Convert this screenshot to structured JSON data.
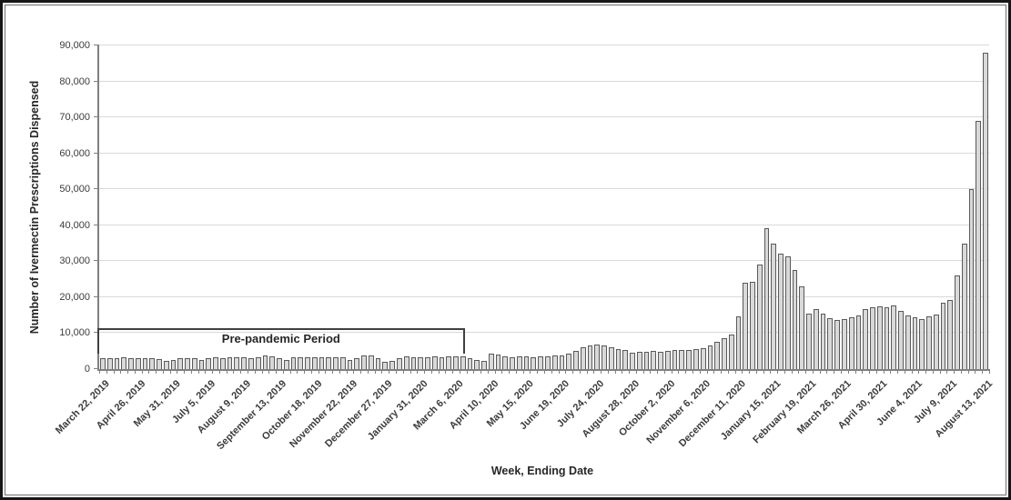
{
  "chart_data": {
    "type": "bar",
    "title": "",
    "xlabel": "Week, Ending Date",
    "ylabel": "Number of Ivermectin Prescriptions Dispensed",
    "ylim": [
      0,
      90000
    ],
    "ytick_interval": 10000,
    "ytick_labels": [
      "0",
      "10,000",
      "20,000",
      "30,000",
      "40,000",
      "50,000",
      "60,000",
      "70,000",
      "80,000",
      "90,000"
    ],
    "grid": "horizontal",
    "legend": "none",
    "bar_count": 126,
    "xtick_label_every": 5,
    "xtick_labels": [
      "March 22, 2019",
      "April 26, 2019",
      "May 31, 2019",
      "July 5, 2019",
      "August 9, 2019",
      "September 13, 2019",
      "October 18, 2019",
      "November 22, 2019",
      "December 27, 2019",
      "January 31, 2020",
      "March 6, 2020",
      "April 10, 2020",
      "May 15, 2020",
      "June 19, 2020",
      "July 24, 2020",
      "August 28, 2020",
      "October 2, 2020",
      "November 6, 2020",
      "December 11, 2020",
      "January 15, 2021",
      "February 19, 2021",
      "March 26, 2021",
      "April 30, 2021",
      "June 4, 2021",
      "July 9, 2021",
      "August 13, 2021"
    ],
    "values": [
      3100,
      3150,
      3100,
      3200,
      3100,
      3050,
      3150,
      3100,
      2900,
      2400,
      2500,
      3000,
      3100,
      3100,
      2600,
      3100,
      3200,
      3150,
      3250,
      3400,
      3200,
      3150,
      3400,
      3700,
      3650,
      3100,
      2500,
      3200,
      3300,
      3250,
      3300,
      3200,
      3300,
      3250,
      3400,
      2600,
      3100,
      3700,
      3850,
      3100,
      2000,
      2250,
      3100,
      3500,
      3250,
      3400,
      3400,
      3500,
      3400,
      3500,
      3650,
      3450,
      3100,
      2500,
      2400,
      4300,
      4000,
      3500,
      3400,
      3450,
      3500,
      3400,
      3500,
      3600,
      3700,
      3900,
      4400,
      5000,
      6000,
      6600,
      6900,
      6700,
      6100,
      5500,
      5200,
      4500,
      4700,
      4800,
      5000,
      4900,
      5100,
      5200,
      5400,
      5300,
      5600,
      5900,
      6600,
      7500,
      8600,
      9600,
      14600,
      24000,
      24200,
      29200,
      39100,
      34800,
      32200,
      31300,
      27500,
      23100,
      15500,
      16600,
      15400,
      14100,
      13600,
      13900,
      14300,
      14800,
      16800,
      17200,
      17500,
      17300,
      17800,
      16100,
      15000,
      14400,
      13900,
      14700,
      15200,
      18500,
      19100,
      26000,
      35000,
      50000,
      69000,
      88000
    ],
    "annotation": {
      "label": "Pre-pandemic Period",
      "start_index": 0,
      "end_index": 51,
      "bracket_y_value": 11300
    },
    "colors": {
      "bar_fill": "#d9d9d9",
      "bar_border": "#595959",
      "gridline": "#d9d9d9",
      "axis": "#808080",
      "text": "#3b3b3b",
      "annotation_line": "#404040"
    }
  }
}
